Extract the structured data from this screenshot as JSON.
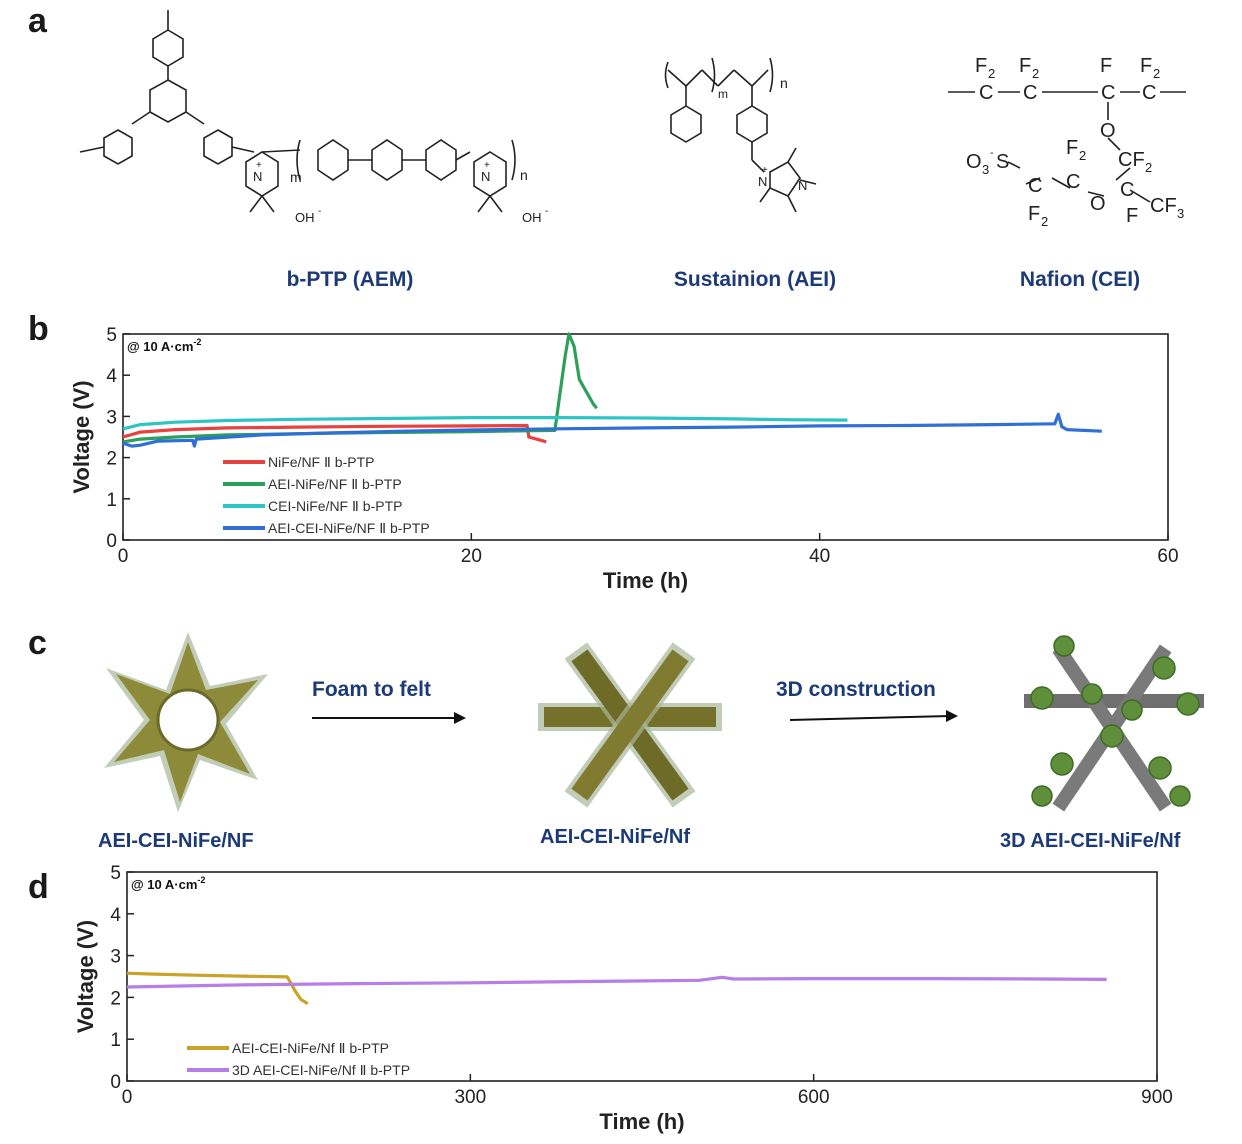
{
  "panels": {
    "a": {
      "letter": "a",
      "structures": [
        {
          "name": "b-PTP (AEM)"
        },
        {
          "name": "Sustainion (AEI)"
        },
        {
          "name": "Nafion (CEI)"
        }
      ],
      "atom_labels": {
        "oh": "OH",
        "minus": "-",
        "m": "m",
        "n": "n",
        "n_atom": "N",
        "plus": "+",
        "f2": "F",
        "sub2": "2",
        "f": "F",
        "c": "C",
        "o": "O",
        "o3s": "O",
        "sub3": "3",
        "s": "S",
        "cf3": "CF",
        "cf2": "CF"
      }
    },
    "b": {
      "letter": "b",
      "condition_prefix": "@ 10 A·cm",
      "condition_sup": "-2"
    },
    "c": {
      "letter": "c",
      "arrow1_label": "Foam to felt",
      "arrow2_label": "3D construction",
      "stage_labels": [
        "AEI-CEI-NiFe/NF",
        "AEI-CEI-NiFe/Nf",
        "3D AEI-CEI-NiFe/Nf"
      ]
    },
    "d": {
      "letter": "d",
      "condition_prefix": "@ 10 A·cm",
      "condition_sup": "-2"
    }
  },
  "chart_data": [
    {
      "id": "b",
      "type": "line",
      "xlabel": "Time (h)",
      "ylabel": "Voltage (V)",
      "xlim": [
        0,
        60
      ],
      "ylim": [
        0,
        5
      ],
      "xticks": [
        0,
        20,
        40,
        60
      ],
      "yticks": [
        0,
        1,
        2,
        3,
        4,
        5
      ],
      "legend_position": "lower-left",
      "series": [
        {
          "name": "NiFe/NF Ⅱ b-PTP",
          "color": "#e8423f",
          "points": [
            [
              0,
              2.5
            ],
            [
              1,
              2.62
            ],
            [
              3,
              2.68
            ],
            [
              6,
              2.72
            ],
            [
              10,
              2.74
            ],
            [
              15,
              2.76
            ],
            [
              20,
              2.77
            ],
            [
              23.2,
              2.78
            ],
            [
              23.3,
              2.5
            ],
            [
              24,
              2.42
            ],
            [
              24.3,
              2.38
            ]
          ]
        },
        {
          "name": "AEI-NiFe/NF Ⅱ b-PTP",
          "color": "#2ca05a",
          "points": [
            [
              0,
              2.38
            ],
            [
              1,
              2.45
            ],
            [
              3,
              2.5
            ],
            [
              6,
              2.55
            ],
            [
              10,
              2.58
            ],
            [
              15,
              2.61
            ],
            [
              20,
              2.63
            ],
            [
              24.8,
              2.66
            ],
            [
              25.1,
              3.6
            ],
            [
              25.4,
              4.5
            ],
            [
              25.6,
              5.0
            ],
            [
              25.9,
              4.7
            ],
            [
              26.2,
              3.9
            ],
            [
              26.6,
              3.6
            ],
            [
              27.0,
              3.3
            ],
            [
              27.2,
              3.2
            ]
          ]
        },
        {
          "name": "CEI-NiFe/NF Ⅱ b-PTP",
          "color": "#2ec4c4",
          "points": [
            [
              0,
              2.7
            ],
            [
              1,
              2.8
            ],
            [
              3,
              2.86
            ],
            [
              6,
              2.9
            ],
            [
              10,
              2.93
            ],
            [
              15,
              2.95
            ],
            [
              20,
              2.97
            ],
            [
              25,
              2.97
            ],
            [
              30,
              2.96
            ],
            [
              35,
              2.94
            ],
            [
              38,
              2.92
            ],
            [
              41.6,
              2.91
            ]
          ]
        },
        {
          "name": "AEI-CEI-NiFe/NF Ⅱ b-PTP",
          "color": "#2f6fd6",
          "points": [
            [
              0,
              2.35
            ],
            [
              0.5,
              2.28
            ],
            [
              1,
              2.3
            ],
            [
              2,
              2.4
            ],
            [
              4,
              2.42
            ],
            [
              4.1,
              2.28
            ],
            [
              4.2,
              2.45
            ],
            [
              8,
              2.55
            ],
            [
              12,
              2.6
            ],
            [
              16,
              2.64
            ],
            [
              20,
              2.67
            ],
            [
              25,
              2.7
            ],
            [
              30,
              2.72
            ],
            [
              35,
              2.74
            ],
            [
              40,
              2.77
            ],
            [
              45,
              2.78
            ],
            [
              50,
              2.8
            ],
            [
              53.5,
              2.82
            ],
            [
              53.7,
              3.05
            ],
            [
              53.9,
              2.75
            ],
            [
              54.2,
              2.68
            ],
            [
              56.2,
              2.64
            ]
          ]
        }
      ]
    },
    {
      "id": "d",
      "type": "line",
      "xlabel": "Time (h)",
      "ylabel": "Voltage (V)",
      "xlim": [
        0,
        900
      ],
      "ylim": [
        0,
        5
      ],
      "xticks": [
        0,
        300,
        600,
        900
      ],
      "yticks": [
        0,
        1,
        2,
        3,
        4,
        5
      ],
      "legend_position": "lower-left",
      "series": [
        {
          "name": "AEI-CEI-NiFe/Nf Ⅱ b-PTP",
          "color": "#c9a227",
          "points": [
            [
              0,
              2.58
            ],
            [
              20,
              2.56
            ],
            [
              60,
              2.53
            ],
            [
              100,
              2.51
            ],
            [
              140,
              2.49
            ],
            [
              143,
              2.35
            ],
            [
              147,
              2.15
            ],
            [
              152,
              1.95
            ],
            [
              158,
              1.85
            ]
          ]
        },
        {
          "name": "3D AEI-CEI-NiFe/Nf Ⅱ b-PTP",
          "color": "#b77ee6",
          "points": [
            [
              0,
              2.25
            ],
            [
              100,
              2.3
            ],
            [
              200,
              2.33
            ],
            [
              300,
              2.35
            ],
            [
              400,
              2.38
            ],
            [
              500,
              2.41
            ],
            [
              520,
              2.48
            ],
            [
              530,
              2.44
            ],
            [
              600,
              2.45
            ],
            [
              700,
              2.45
            ],
            [
              800,
              2.44
            ],
            [
              856,
              2.43
            ]
          ]
        }
      ]
    }
  ]
}
